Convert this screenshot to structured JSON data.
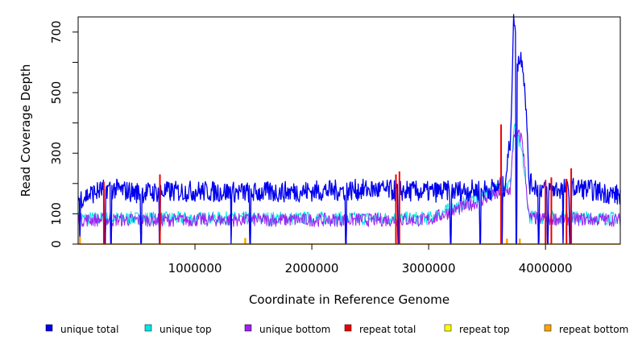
{
  "chart_data": {
    "type": "line",
    "xlabel": "Coordinate in Reference Genome",
    "ylabel": "Read Coverage Depth",
    "xlim": [
      0,
      4640000
    ],
    "ylim": [
      0,
      750
    ],
    "x_ticks": [
      1000000,
      2000000,
      3000000,
      4000000
    ],
    "x_tick_labels": [
      "1000000",
      "2000000",
      "3000000",
      "4000000"
    ],
    "y_ticks": [
      0,
      100,
      300,
      500,
      700
    ],
    "y_tick_labels": [
      "0",
      "100",
      "300",
      "500",
      "700"
    ],
    "y_minor_ticks": [
      200,
      400,
      600
    ],
    "grid": false,
    "legend_position": "bottom",
    "legend": [
      {
        "name": "unique total",
        "color": "#0000ee"
      },
      {
        "name": "unique top",
        "color": "#00e5e5"
      },
      {
        "name": "unique bottom",
        "color": "#a020f0"
      },
      {
        "name": "repeat total",
        "color": "#ee0000"
      },
      {
        "name": "repeat top",
        "color": "#ffff00"
      },
      {
        "name": "repeat bottom",
        "color": "#ffa500"
      }
    ],
    "series": [
      {
        "name": "unique total",
        "color": "#0000ee",
        "typical_value": 175,
        "points": [
          [
            0,
            150
          ],
          [
            250000,
            185
          ],
          [
            500000,
            170
          ],
          [
            1000000,
            175
          ],
          [
            1500000,
            170
          ],
          [
            2000000,
            175
          ],
          [
            2500000,
            180
          ],
          [
            3000000,
            172
          ],
          [
            3500000,
            180
          ],
          [
            3650000,
            190
          ],
          [
            3700000,
            350
          ],
          [
            3730000,
            765
          ],
          [
            3760000,
            600
          ],
          [
            3800000,
            620
          ],
          [
            3830000,
            480
          ],
          [
            3860000,
            200
          ],
          [
            4000000,
            180
          ],
          [
            4300000,
            185
          ],
          [
            4640000,
            160
          ]
        ]
      },
      {
        "name": "unique top",
        "color": "#00e5e5",
        "typical_value": 85,
        "points": [
          [
            0,
            85
          ],
          [
            1000000,
            85
          ],
          [
            2000000,
            85
          ],
          [
            3000000,
            85
          ],
          [
            3700000,
            200
          ],
          [
            3730000,
            390
          ],
          [
            3800000,
            300
          ],
          [
            3860000,
            90
          ],
          [
            4640000,
            85
          ]
        ]
      },
      {
        "name": "unique bottom",
        "color": "#a020f0",
        "typical_value": 80,
        "points": [
          [
            0,
            80
          ],
          [
            1000000,
            80
          ],
          [
            2000000,
            80
          ],
          [
            3000000,
            80
          ],
          [
            3700000,
            180
          ],
          [
            3730000,
            370
          ],
          [
            3800000,
            350
          ],
          [
            3860000,
            85
          ],
          [
            4640000,
            80
          ]
        ]
      },
      {
        "name": "repeat total",
        "color": "#ee0000",
        "points": [
          [
            220000,
            205
          ],
          [
            700000,
            230
          ],
          [
            2720000,
            230
          ],
          [
            2750000,
            240
          ],
          [
            3620000,
            395
          ],
          [
            4180000,
            215
          ],
          [
            4220000,
            250
          ],
          [
            4000000,
            210
          ],
          [
            4050000,
            220
          ]
        ]
      },
      {
        "name": "repeat top",
        "color": "#ffff00",
        "points": [
          [
            0,
            0
          ],
          [
            4640000,
            0
          ]
        ]
      },
      {
        "name": "repeat bottom",
        "color": "#ffa500",
        "points": [
          [
            0,
            0
          ],
          [
            15000,
            25
          ],
          [
            1430000,
            20
          ],
          [
            3670000,
            18
          ],
          [
            3780000,
            18
          ],
          [
            4640000,
            0
          ]
        ]
      }
    ],
    "dropouts_x": [
      15000,
      230000,
      280000,
      540000,
      700000,
      1310000,
      1470000,
      2290000,
      2740000,
      3190000,
      3440000,
      3630000,
      3750000,
      3940000,
      4020000,
      4150000,
      4210000
    ]
  }
}
